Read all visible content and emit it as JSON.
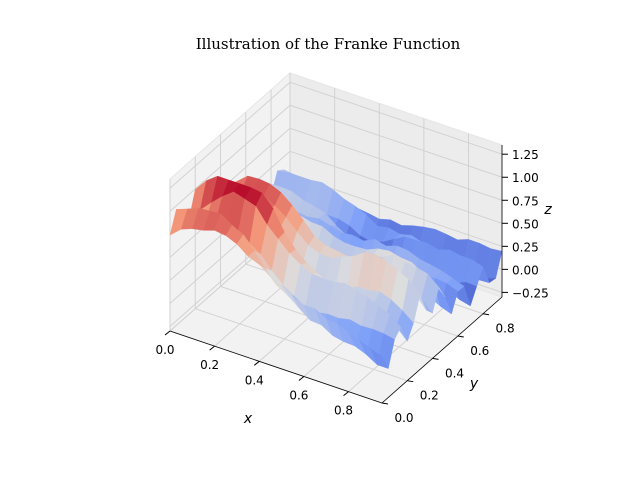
{
  "chart_data": {
    "type": "surface",
    "title": "Illustration of the Franke Function",
    "xlabel": "x",
    "ylabel": "y",
    "zlabel": "z",
    "xlim": [
      0.0,
      0.95
    ],
    "ylim": [
      0.0,
      0.95
    ],
    "zlim": [
      -0.3,
      1.35
    ],
    "x_ticks": [
      "0.0",
      "0.2",
      "0.4",
      "0.6",
      "0.8"
    ],
    "y_ticks": [
      "0.0",
      "0.2",
      "0.4",
      "0.6",
      "0.8"
    ],
    "z_ticks": [
      "−0.25",
      "0.00",
      "0.25",
      "0.50",
      "0.75",
      "1.00",
      "1.25"
    ],
    "x_tick_values": [
      0.0,
      0.2,
      0.4,
      0.6,
      0.8
    ],
    "y_tick_values": [
      0.0,
      0.2,
      0.4,
      0.6,
      0.8
    ],
    "z_tick_values": [
      -0.25,
      0.0,
      0.25,
      0.5,
      0.75,
      1.0,
      1.25
    ],
    "colormap": "coolwarm",
    "grid": true,
    "surface": {
      "function": "Franke function plus noise",
      "x_range": [
        0.0,
        0.95
      ],
      "y_range": [
        0.0,
        0.95
      ],
      "z_min": -0.25,
      "z_max": 1.22
    }
  }
}
